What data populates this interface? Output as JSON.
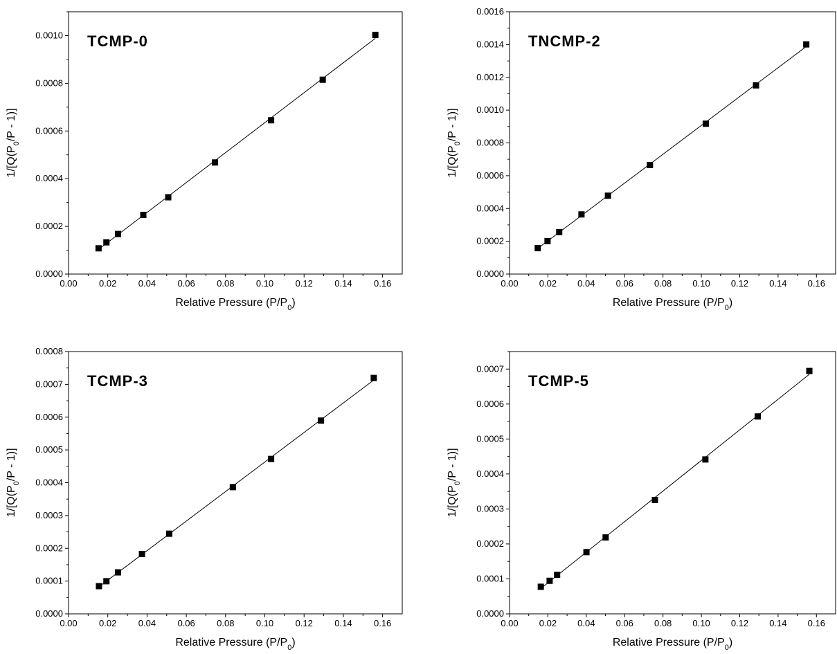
{
  "chart_data": [
    {
      "type": "scatter",
      "title": "TCMP-0",
      "xlabel": "Relative Pressure (P/P0)",
      "ylabel": "1/[Q(P0/P - 1)]",
      "xlim": [
        0.0,
        0.17
      ],
      "ylim": [
        0.0,
        0.0011
      ],
      "xticks": [
        "0.00",
        "0.02",
        "0.04",
        "0.06",
        "0.08",
        "0.10",
        "0.12",
        "0.14",
        "0.16"
      ],
      "yticks": [
        "0.0000",
        "0.0002",
        "0.0004",
        "0.0006",
        "0.0008",
        "0.0010"
      ],
      "x": [
        0.0153,
        0.0193,
        0.0252,
        0.0381,
        0.0508,
        0.0746,
        0.1032,
        0.1295,
        0.1563
      ],
      "y": [
        0.000108,
        0.000133,
        0.000168,
        0.000248,
        0.000322,
        0.000468,
        0.000645,
        0.000815,
        0.001003
      ],
      "fit_line": true,
      "grid": false
    },
    {
      "type": "scatter",
      "title": "TNCMP-2",
      "xlabel": "Relative Pressure (P/P0)",
      "ylabel": "1/[Q(P0/P - 1)]",
      "xlim": [
        0.0,
        0.17
      ],
      "ylim": [
        0.0,
        0.0016
      ],
      "xticks": [
        "0.00",
        "0.02",
        "0.04",
        "0.06",
        "0.08",
        "0.10",
        "0.12",
        "0.14",
        "0.16"
      ],
      "yticks": [
        "0.0000",
        "0.0002",
        "0.0004",
        "0.0006",
        "0.0008",
        "0.0010",
        "0.0012",
        "0.0014",
        "0.0016"
      ],
      "x": [
        0.0147,
        0.0198,
        0.0259,
        0.0375,
        0.0513,
        0.0732,
        0.1023,
        0.1285,
        0.1547
      ],
      "y": [
        0.000158,
        0.000201,
        0.000256,
        0.000364,
        0.000478,
        0.000665,
        0.000917,
        0.001151,
        0.001401
      ],
      "fit_line": true,
      "grid": false
    },
    {
      "type": "scatter",
      "title": "TCMP-3",
      "xlabel": "Relative Pressure (P/P0)",
      "ylabel": "1/[Q(P0/P - 1)]",
      "xlim": [
        0.0,
        0.17
      ],
      "ylim": [
        0.0,
        0.0008
      ],
      "xticks": [
        "0.00",
        "0.02",
        "0.04",
        "0.06",
        "0.08",
        "0.10",
        "0.12",
        "0.14",
        "0.16"
      ],
      "yticks": [
        "0.0000",
        "0.0001",
        "0.0002",
        "0.0003",
        "0.0004",
        "0.0005",
        "0.0006",
        "0.0007",
        "0.0008"
      ],
      "x": [
        0.0155,
        0.0193,
        0.0252,
        0.0374,
        0.0513,
        0.0837,
        0.1032,
        0.1286,
        0.1555
      ],
      "y": [
        8.45e-05,
        9.95e-05,
        0.0001265,
        0.0001825,
        0.0002445,
        0.0003865,
        0.0004725,
        0.0005895,
        0.0007195
      ],
      "fit_line": true,
      "grid": false
    },
    {
      "type": "scatter",
      "title": "TCMP-5",
      "xlabel": "Relative Pressure (P/P0)",
      "ylabel": "1/[Q(P0/P - 1)]",
      "xlim": [
        0.0,
        0.17
      ],
      "ylim": [
        0.0,
        0.00075
      ],
      "xticks": [
        "0.00",
        "0.02",
        "0.04",
        "0.06",
        "0.08",
        "0.10",
        "0.12",
        "0.14",
        "0.16"
      ],
      "yticks": [
        "0.0000",
        "0.0001",
        "0.0002",
        "0.0003",
        "0.0004",
        "0.0005",
        "0.0006",
        "0.0007"
      ],
      "x": [
        0.0163,
        0.0209,
        0.0248,
        0.0401,
        0.0501,
        0.0758,
        0.1021,
        0.1294,
        0.1563
      ],
      "y": [
        7.75e-05,
        9.45e-05,
        0.0001115,
        0.0001765,
        0.0002185,
        0.0003255,
        0.0004415,
        0.0005645,
        0.0006945
      ],
      "fit_line": true,
      "grid": false
    }
  ]
}
